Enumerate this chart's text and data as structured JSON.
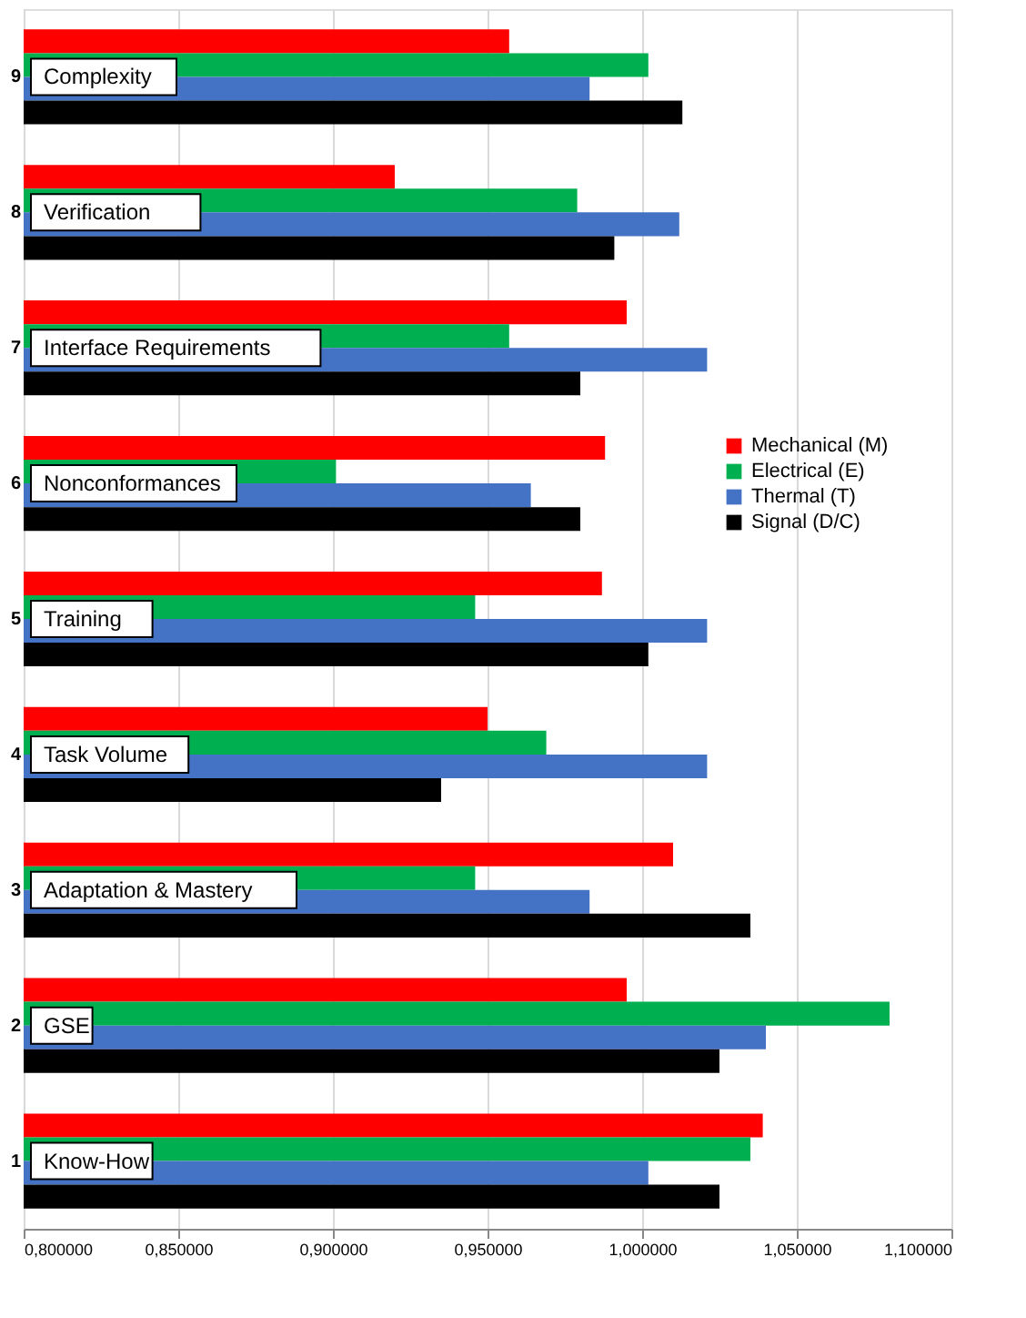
{
  "chart_data": {
    "type": "bar",
    "orientation": "horizontal",
    "categories": [
      "9",
      "8",
      "7",
      "6",
      "5",
      "4",
      "3",
      "2",
      "1"
    ],
    "series": [
      {
        "name": "Mechanical (M)",
        "color": "#ff0000",
        "values": [
          0.957,
          0.92,
          0.995,
          0.988,
          0.987,
          0.95,
          1.01,
          0.995,
          1.039
        ]
      },
      {
        "name": "Electrical (E)",
        "color": "#00b050",
        "values": [
          1.002,
          0.979,
          0.957,
          0.901,
          0.946,
          0.969,
          0.946,
          1.08,
          1.035
        ]
      },
      {
        "name": "Thermal (T)",
        "color": "#4472c4",
        "values": [
          0.983,
          1.012,
          1.021,
          0.964,
          1.021,
          1.021,
          0.983,
          1.04,
          1.002
        ]
      },
      {
        "name": "Signal (D/C)",
        "color": "#000000",
        "values": [
          1.013,
          0.991,
          0.98,
          0.98,
          1.002,
          0.935,
          1.035,
          1.025,
          1.025
        ]
      }
    ],
    "annotations": [
      {
        "text": "Complexity",
        "y": "9"
      },
      {
        "text": "Verification",
        "y": "8"
      },
      {
        "text": "Interface Requirements",
        "y": "7"
      },
      {
        "text": "Nonconformances",
        "y": "6"
      },
      {
        "text": "Training",
        "y": "5"
      },
      {
        "text": "Task Volume",
        "y": "4"
      },
      {
        "text": "Adaptation & Mastery",
        "y": "3"
      },
      {
        "text": "GSE",
        "y": "2"
      },
      {
        "text": "Know-How",
        "y": "1"
      }
    ],
    "xlim": [
      0.8,
      1.1
    ],
    "xticks": [
      {
        "value": 0.8,
        "label": "0,800000"
      },
      {
        "value": 0.85,
        "label": "0,850000"
      },
      {
        "value": 0.9,
        "label": "0,900000"
      },
      {
        "value": 0.95,
        "label": "0,950000"
      },
      {
        "value": 1.0,
        "label": "1,000000"
      },
      {
        "value": 1.05,
        "label": "1,050000"
      },
      {
        "value": 1.1,
        "label": "1,100000"
      }
    ],
    "grid": "x",
    "legend": "right"
  }
}
